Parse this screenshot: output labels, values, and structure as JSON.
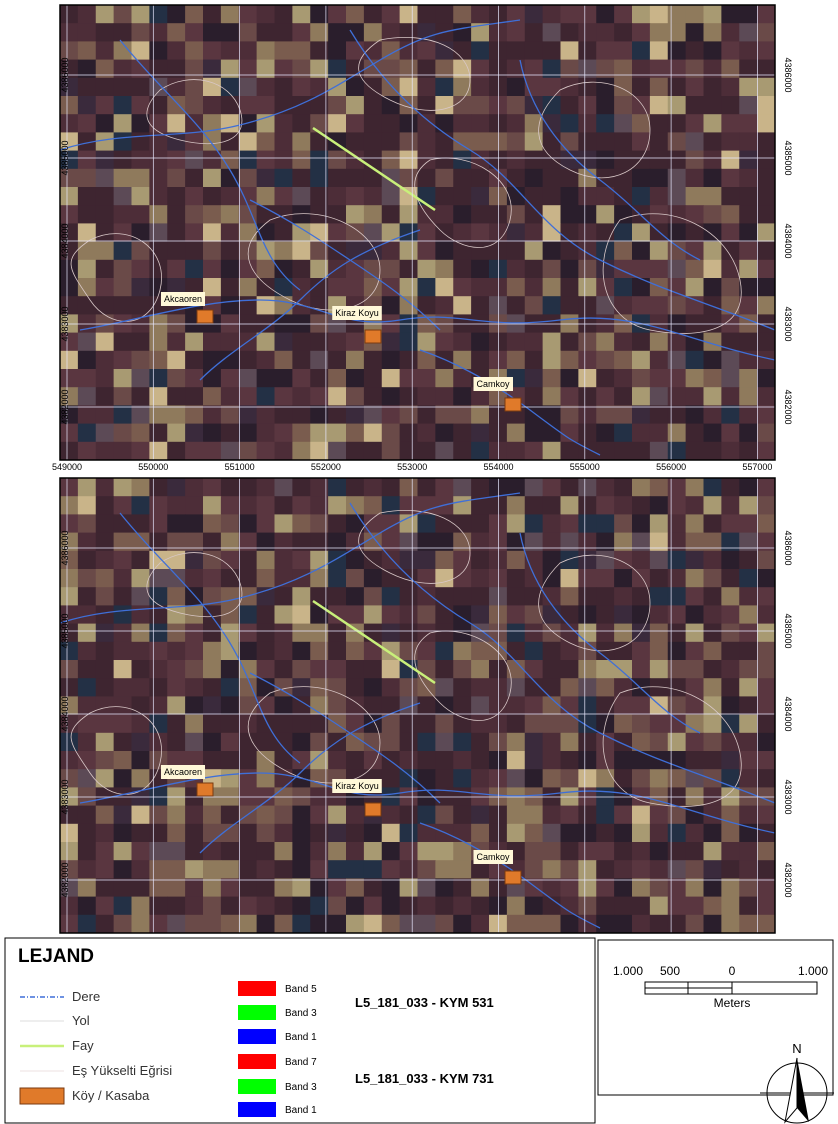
{
  "maps": [
    {
      "x_labels": [
        549000,
        550000,
        551000,
        552000,
        553000,
        554000,
        555000,
        556000,
        557000
      ],
      "y_labels": [
        4386000,
        4385000,
        4384000,
        4383000,
        4382000
      ],
      "places": [
        {
          "label": "Akcaoren"
        },
        {
          "label": "Kiraz Koyu"
        },
        {
          "label": "Camkoy"
        }
      ]
    },
    {
      "y_labels": [
        4386000,
        4385000,
        4384000,
        4383000,
        4382000
      ],
      "places": [
        {
          "label": "Akcaoren"
        },
        {
          "label": "Kiraz Koyu"
        },
        {
          "label": "Camkoy"
        }
      ]
    }
  ],
  "legend": {
    "title": "LEJAND",
    "items": [
      {
        "label": "Dere"
      },
      {
        "label": "Yol"
      },
      {
        "label": "Fay"
      },
      {
        "label": "Eş Yükselti Eğrisi"
      },
      {
        "label": "Köy / Kasaba"
      }
    ],
    "bands": [
      {
        "label": "Band 5"
      },
      {
        "label": "Band 3"
      },
      {
        "label": "Band 1"
      },
      {
        "label": "Band 7"
      },
      {
        "label": "Band 3"
      },
      {
        "label": "Band 1"
      }
    ],
    "composites": [
      "L5_181_033 - KYM 531",
      "L5_181_033 - KYM 731"
    ]
  },
  "scale": {
    "labels": [
      "1.000",
      "500",
      "0",
      "1.000"
    ],
    "unit": "Meters",
    "north": "N"
  }
}
